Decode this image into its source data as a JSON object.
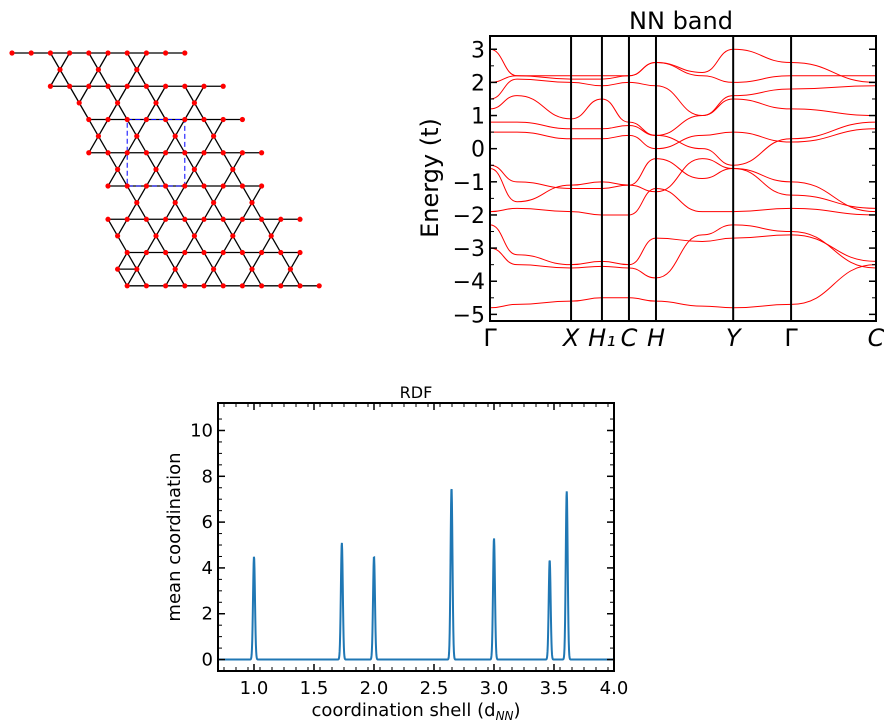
{
  "chart_data": [
    {
      "type": "diagram",
      "description_hint": "kagome-type lattice",
      "colors": {
        "bond": "#000000",
        "atom": "#ff0000",
        "cell": "#0000ff"
      }
    },
    {
      "type": "line",
      "title": "NN band",
      "xlabel": "",
      "ylabel": "Energy (t)",
      "ylim": [
        -5.2,
        3.4
      ],
      "yticks": [
        "3",
        "2",
        "1",
        "0",
        "−1",
        "−2",
        "−3",
        "−4",
        "−5"
      ],
      "ytick_values": [
        3,
        2,
        1,
        0,
        -1,
        -2,
        -3,
        -4,
        -5
      ],
      "kpath": [
        "Γ",
        "X",
        "H₁",
        "C",
        "H",
        "Y",
        "Γ",
        "C"
      ],
      "kpath_position": [
        0,
        0.21,
        0.29,
        0.36,
        0.43,
        0.63,
        0.78,
        1.0
      ],
      "grid": false,
      "color": "#ff0000",
      "series": [
        {
          "values": [
            -4.8,
            -4.7,
            -4.6,
            -4.5,
            -4.5,
            -4.6,
            -4.75,
            -4.8,
            -4.7,
            -3.5
          ]
        },
        {
          "values": [
            -3.0,
            -3.5,
            -3.6,
            -3.55,
            -3.6,
            -3.9,
            -2.6,
            -2.3,
            -2.5,
            -3.6
          ]
        },
        {
          "values": [
            -2.3,
            -3.2,
            -3.5,
            -3.4,
            -3.5,
            -2.7,
            -2.8,
            -2.7,
            -2.6,
            -3.4
          ]
        },
        {
          "values": [
            -1.9,
            -1.8,
            -1.9,
            -2.0,
            -2.0,
            -1.2,
            -1.9,
            -1.9,
            -1.8,
            -2.0
          ]
        },
        {
          "values": [
            -0.6,
            -1.6,
            -1.1,
            -1.0,
            -1.1,
            -1.3,
            -0.3,
            -0.6,
            -1.4,
            -1.8
          ]
        },
        {
          "values": [
            -0.5,
            -1.0,
            -1.2,
            -1.2,
            -1.1,
            -0.3,
            -0.9,
            -0.6,
            -1.0,
            -1.9
          ]
        },
        {
          "values": [
            0.5,
            0.5,
            0.3,
            0.3,
            0.4,
            0.0,
            0.4,
            0.5,
            0.2,
            0.6
          ]
        },
        {
          "values": [
            0.8,
            0.8,
            0.6,
            0.6,
            0.7,
            0.4,
            0.0,
            -0.5,
            0.3,
            0.8
          ]
        },
        {
          "values": [
            1.2,
            1.6,
            0.9,
            1.5,
            0.8,
            0.4,
            1.0,
            1.5,
            1.2,
            1.0
          ]
        },
        {
          "values": [
            1.5,
            2.1,
            2.0,
            1.9,
            2.0,
            1.9,
            1.0,
            1.6,
            1.8,
            1.9
          ]
        },
        {
          "values": [
            2.0,
            2.2,
            2.1,
            2.1,
            2.2,
            2.6,
            2.2,
            2.0,
            2.2,
            2.2
          ]
        },
        {
          "values": [
            3.0,
            2.2,
            2.2,
            2.2,
            2.2,
            2.6,
            2.3,
            3.0,
            2.6,
            2.0
          ]
        }
      ]
    },
    {
      "type": "line",
      "title": "RDF",
      "xlabel": "coordination shell (d",
      "xlabel_sub": "NN",
      "xlabel_close": ")",
      "ylabel": "mean coordination",
      "xlim": [
        0.7,
        4.0
      ],
      "ylim": [
        -0.5,
        11.2
      ],
      "xticks": [
        "1.0",
        "1.5",
        "2.0",
        "2.5",
        "3.0",
        "3.5",
        "4.0"
      ],
      "xtick_values": [
        1.0,
        1.5,
        2.0,
        2.5,
        3.0,
        3.5,
        4.0
      ],
      "yticks": [
        "0",
        "2",
        "4",
        "6",
        "8",
        "10"
      ],
      "ytick_values": [
        0,
        2,
        4,
        6,
        8,
        10
      ],
      "grid": false,
      "color": "#1f77b4",
      "peaks": [
        {
          "x": 1.0,
          "y": 4.5
        },
        {
          "x": 1.732,
          "y": 5.1
        },
        {
          "x": 2.0,
          "y": 4.5
        },
        {
          "x": 2.646,
          "y": 7.5
        },
        {
          "x": 3.0,
          "y": 5.3
        },
        {
          "x": 3.464,
          "y": 4.35
        },
        {
          "x": 3.606,
          "y": 7.35
        }
      ]
    }
  ]
}
